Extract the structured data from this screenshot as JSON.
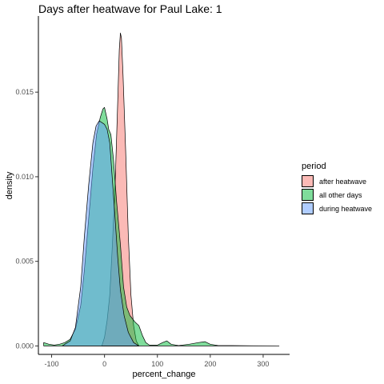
{
  "chart_data": {
    "type": "area",
    "title": "Days after heatwave for Paul Lake: 1",
    "xlabel": "percent_change",
    "ylabel": "density",
    "xlim": [
      -125,
      350
    ],
    "ylim": [
      -0.0005,
      0.0195
    ],
    "x_ticks": [
      -100,
      0,
      100,
      200,
      300
    ],
    "x_tick_labels": [
      "-100",
      "0",
      "100",
      "200",
      "300"
    ],
    "y_ticks": [
      0,
      0.005,
      0.01,
      0.015
    ],
    "y_tick_labels": [
      "0.000",
      "0.005",
      "0.010",
      "0.015"
    ],
    "grid": false,
    "legend": {
      "title": "period",
      "position": "right"
    },
    "series": [
      {
        "name": "after heatwave",
        "color": "#F8766D",
        "points": [
          [
            -5,
            0
          ],
          [
            0,
            0.0005
          ],
          [
            5,
            0.0015
          ],
          [
            10,
            0.003
          ],
          [
            15,
            0.006
          ],
          [
            20,
            0.0095
          ],
          [
            25,
            0.0145
          ],
          [
            28,
            0.0175
          ],
          [
            30,
            0.0185
          ],
          [
            32,
            0.0182
          ],
          [
            35,
            0.016
          ],
          [
            40,
            0.0115
          ],
          [
            45,
            0.0065
          ],
          [
            50,
            0.003
          ],
          [
            55,
            0.0012
          ],
          [
            60,
            0.0003
          ],
          [
            65,
            0
          ]
        ]
      },
      {
        "name": "all other days",
        "color": "#00BA38",
        "points": [
          [
            -115,
            0.0002
          ],
          [
            -105,
            0.0001
          ],
          [
            -95,
            5e-05
          ],
          [
            -85,
            0.0001
          ],
          [
            -75,
            0.0002
          ],
          [
            -65,
            0.0004
          ],
          [
            -55,
            0.001
          ],
          [
            -45,
            0.0024
          ],
          [
            -38,
            0.0045
          ],
          [
            -30,
            0.0075
          ],
          [
            -22,
            0.0105
          ],
          [
            -15,
            0.0125
          ],
          [
            -8,
            0.0135
          ],
          [
            -3,
            0.014
          ],
          [
            0,
            0.0141
          ],
          [
            5,
            0.0134
          ],
          [
            8,
            0.0128
          ],
          [
            12,
            0.0125
          ],
          [
            17,
            0.011
          ],
          [
            23,
            0.0085
          ],
          [
            30,
            0.006
          ],
          [
            36,
            0.0035
          ],
          [
            42,
            0.0023
          ],
          [
            48,
            0.0018
          ],
          [
            53,
            0.0016
          ],
          [
            58,
            0.0014
          ],
          [
            65,
            0.0012
          ],
          [
            72,
            0.0006
          ],
          [
            78,
            0.0002
          ],
          [
            85,
            5e-05
          ],
          [
            100,
            5e-05
          ],
          [
            110,
            0.0002
          ],
          [
            118,
            0.0003
          ],
          [
            126,
            0.0001
          ],
          [
            140,
            2e-05
          ],
          [
            160,
            0.0001
          ],
          [
            178,
            0.0002
          ],
          [
            190,
            0.00025
          ],
          [
            200,
            0.0001
          ],
          [
            215,
            2e-05
          ],
          [
            240,
            2e-05
          ],
          [
            280,
            1e-05
          ],
          [
            330,
            0
          ]
        ]
      },
      {
        "name": "during heatwave",
        "color": "#619CFF",
        "points": [
          [
            -80,
            0
          ],
          [
            -65,
            0.0003
          ],
          [
            -55,
            0.0011
          ],
          [
            -45,
            0.0035
          ],
          [
            -38,
            0.0065
          ],
          [
            -30,
            0.0095
          ],
          [
            -22,
            0.012
          ],
          [
            -16,
            0.013
          ],
          [
            -10,
            0.0133
          ],
          [
            -5,
            0.0132
          ],
          [
            0,
            0.0131
          ],
          [
            5,
            0.0128
          ],
          [
            10,
            0.012
          ],
          [
            15,
            0.0098
          ],
          [
            20,
            0.0075
          ],
          [
            25,
            0.0052
          ],
          [
            30,
            0.0033
          ],
          [
            37,
            0.0018
          ],
          [
            45,
            0.0008
          ],
          [
            55,
            0.0002
          ],
          [
            65,
            0
          ]
        ]
      }
    ]
  }
}
